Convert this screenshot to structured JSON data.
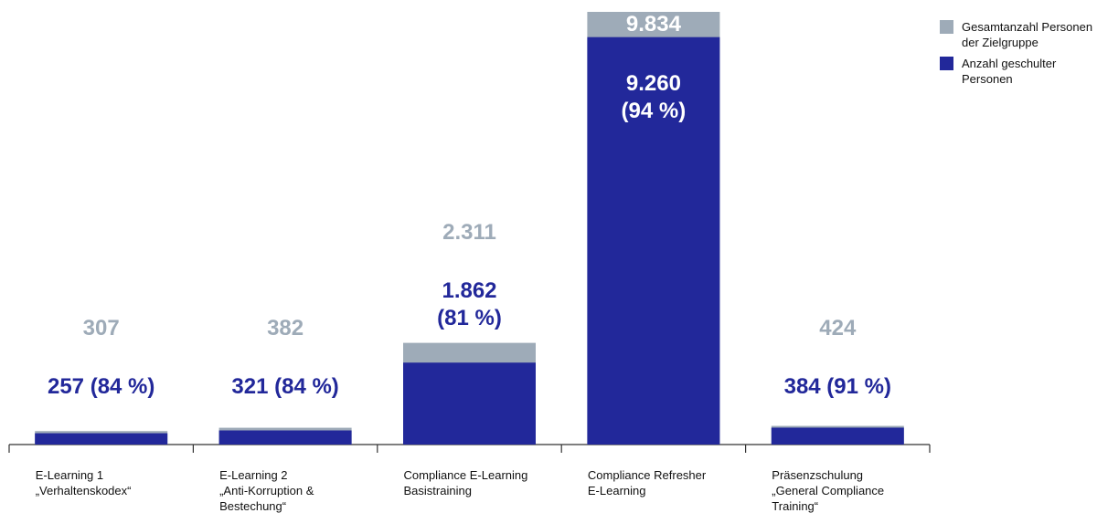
{
  "chart_data": {
    "type": "bar",
    "categories": [
      "E-Learning 1\n„Verhaltenskodex“",
      "E-Learning 2\n„Anti-Korruption &\nBestechung“",
      "Compliance E-Learning\nBasistraining",
      "Compliance Refresher\nE-Learning",
      "Präsenzschulung\n„General Compliance\nTraining“"
    ],
    "series": [
      {
        "name": "Gesamtanzahl Personen der Zielgruppe",
        "color": "#9eabb8",
        "values": [
          307,
          382,
          2311,
          9834,
          424
        ],
        "value_labels": [
          "307",
          "382",
          "2.311",
          "9.834",
          "424"
        ]
      },
      {
        "name": "Anzahl geschulter Personen",
        "color": "#22289a",
        "values": [
          257,
          321,
          1862,
          9260,
          384
        ],
        "value_labels": [
          "257 (84 %)",
          "321 (84 %)",
          "1.862\n(81 %)",
          "9.260\n(94 %)",
          "384 (91 %)"
        ]
      }
    ],
    "legend": "top-right"
  }
}
